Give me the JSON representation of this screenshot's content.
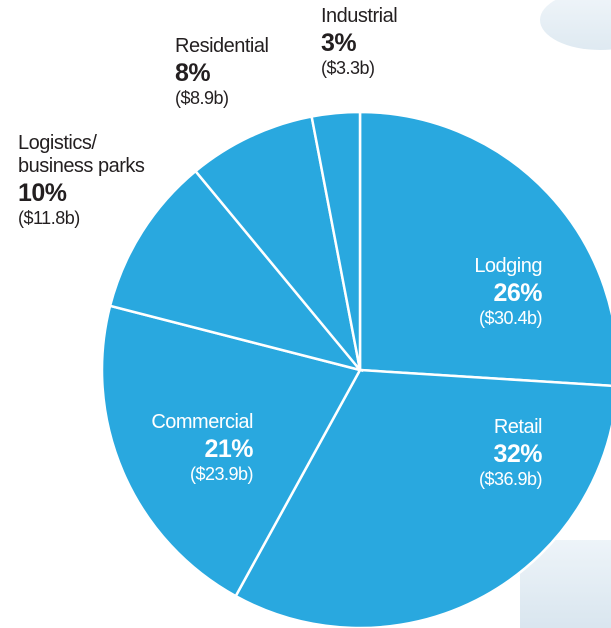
{
  "chart_data": {
    "type": "pie",
    "categories": [
      "Lodging",
      "Retail",
      "Commercial",
      "Logistics/\nbusiness parks",
      "Residential",
      "Industrial"
    ],
    "values": [
      26,
      32,
      21,
      10,
      8,
      3
    ],
    "value_labels": [
      "26%",
      "32%",
      "21%",
      "10%",
      "8%",
      "3%"
    ],
    "amount_labels": [
      "($30.4b)",
      "($36.9b)",
      "($23.9b)",
      "($11.8b)",
      "($8.9b)",
      "($3.3b)"
    ],
    "color": "#29a8df"
  }
}
